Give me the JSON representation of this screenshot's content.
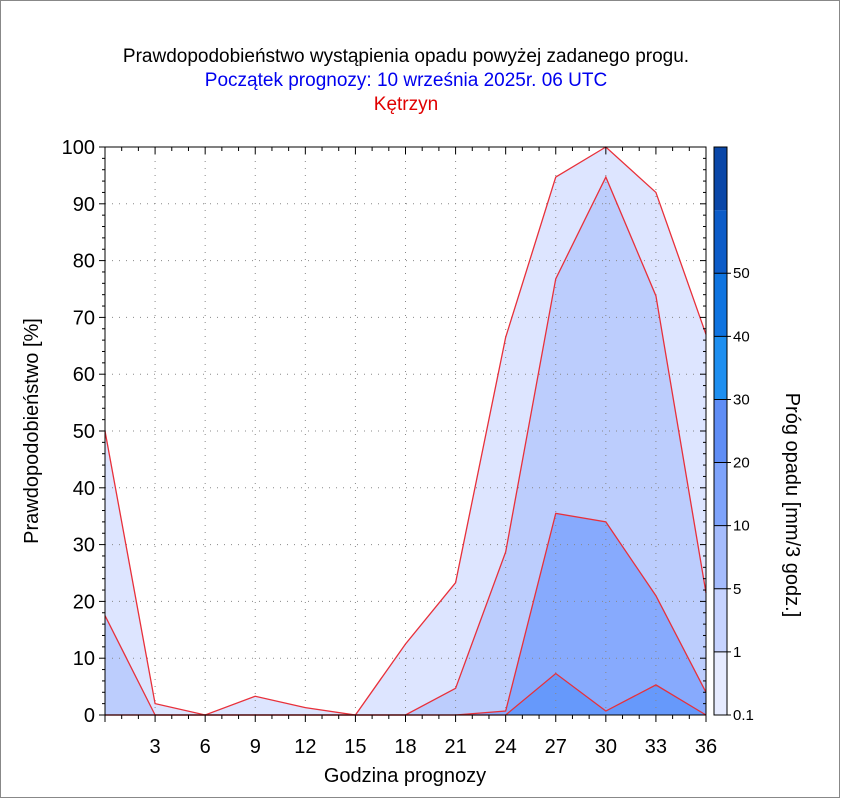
{
  "chart_data": {
    "type": "area",
    "title": "Prawdopodobieństwo wystąpienia opadu powyżej zadanego progu.",
    "subtitle": "Początek prognozy: 10 września 2025r. 06 UTC",
    "location": "Kętrzyn",
    "xlabel": "Godzina prognozy",
    "ylabel": "Prawdopodobieństwo [%]",
    "colorbar_label": "Próg opadu [mm/3 godz.]",
    "x": [
      0,
      3,
      6,
      9,
      12,
      15,
      18,
      21,
      24,
      27,
      30,
      33,
      36
    ],
    "x_ticks": [
      "3",
      "6",
      "9",
      "12",
      "15",
      "18",
      "21",
      "24",
      "27",
      "30",
      "33",
      "36"
    ],
    "xlim": [
      0,
      36
    ],
    "ylim": [
      0,
      100
    ],
    "y_ticks": [
      "0",
      "10",
      "20",
      "30",
      "40",
      "50",
      "60",
      "70",
      "80",
      "90",
      "100"
    ],
    "series": [
      {
        "threshold": 0.1,
        "color": "#dde5ff",
        "values": [
          50,
          2,
          0,
          3.3,
          1.3,
          0,
          12.5,
          23.3,
          66.5,
          94.7,
          100,
          92,
          67
        ]
      },
      {
        "threshold": 1,
        "color": "#bccdfd",
        "values": [
          17.5,
          0,
          0,
          0,
          0,
          0,
          0,
          4.7,
          28.7,
          76.8,
          94.7,
          73.8,
          21.5
        ]
      },
      {
        "threshold": 5,
        "color": "#87aafd",
        "values": [
          0,
          0,
          0,
          0,
          0,
          0,
          0,
          0,
          0.7,
          35.5,
          34,
          21,
          4
        ]
      },
      {
        "threshold": 10,
        "color": "#6699fb",
        "values": [
          0,
          0,
          0,
          0,
          0,
          0,
          0,
          0,
          0,
          7.3,
          0.7,
          5.3,
          0
        ]
      }
    ],
    "colorbar": {
      "levels": [
        "0.1",
        "1",
        "5",
        "10",
        "20",
        "30",
        "40",
        "50"
      ],
      "colors": [
        "#e6ebff",
        "#c6d3ff",
        "#a5bcfd",
        "#7ea3fb",
        "#5f8df5",
        "#1e8ff0",
        "#0f74e0",
        "#0c5cc8",
        "#0a47a8"
      ]
    },
    "grid": true
  }
}
